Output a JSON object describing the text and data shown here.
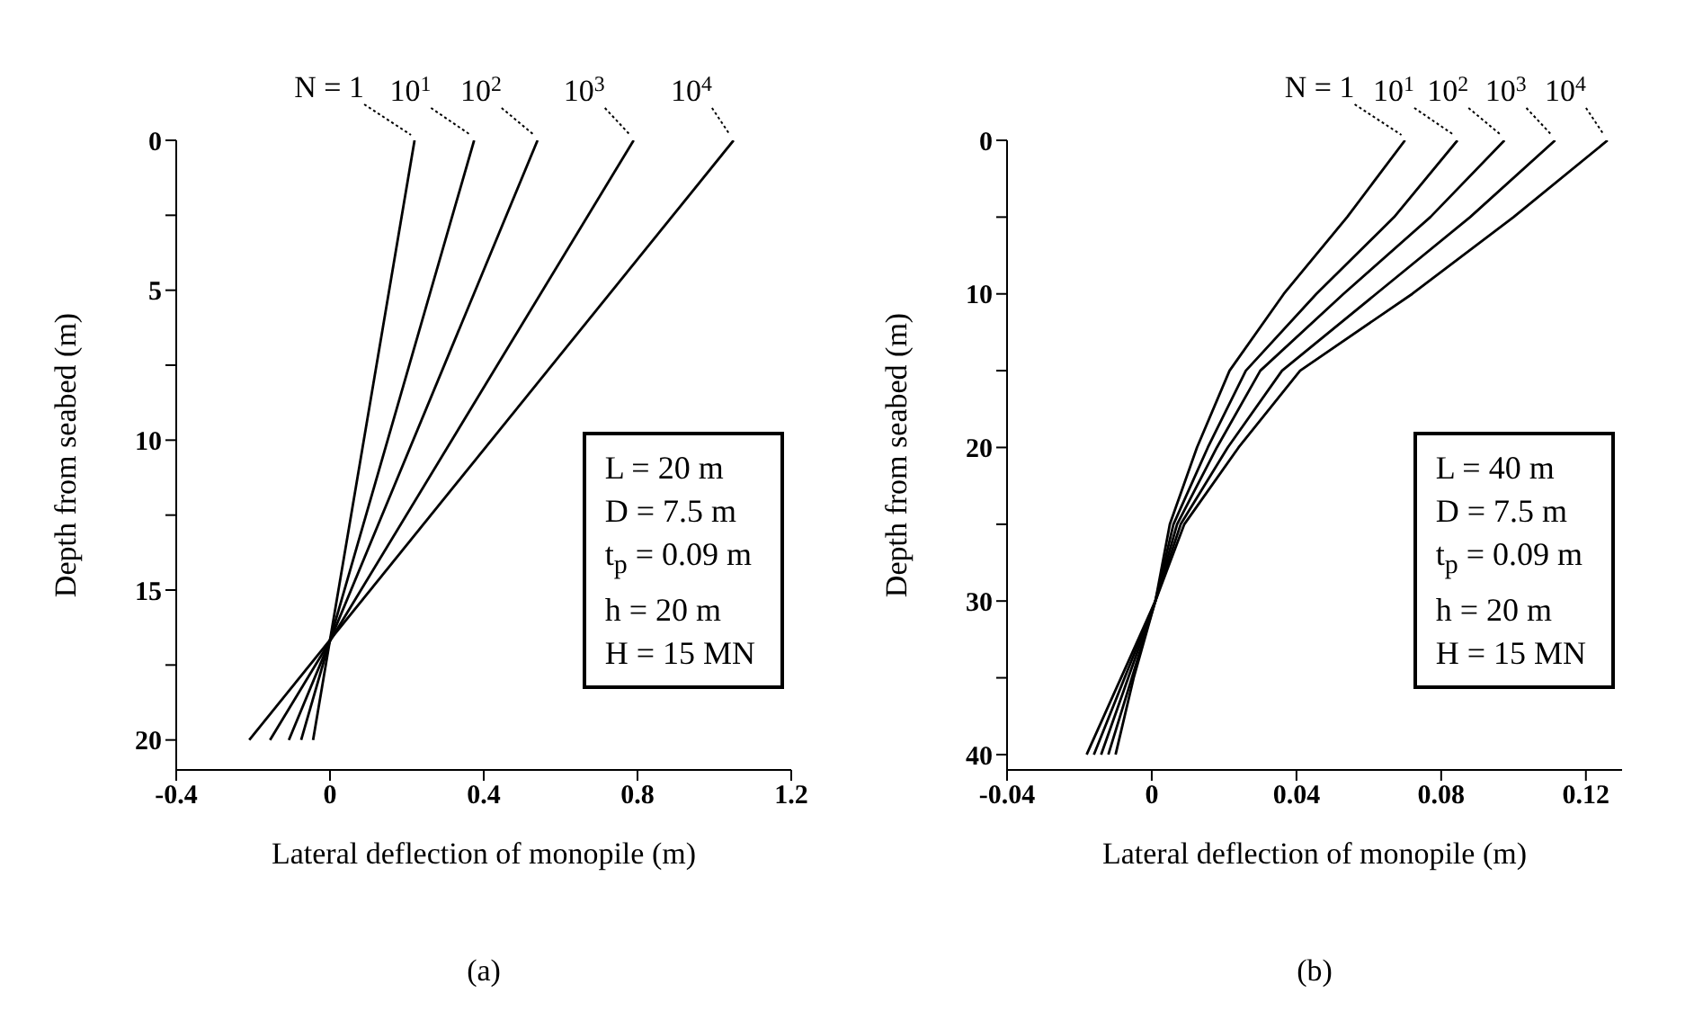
{
  "chart_data": [
    {
      "type": "line",
      "title": "(a)",
      "xlabel": "Lateral deflection of monopile (m)",
      "ylabel": "Depth from seabed (m)",
      "xlim": [
        -0.4,
        1.2
      ],
      "xticks": [
        -0.4,
        0,
        0.4,
        0.8,
        1.2
      ],
      "ylim": [
        21,
        0
      ],
      "yticks": [
        0,
        {
          "value": 2.5,
          "label": null
        },
        5,
        {
          "value": 7.5,
          "label": null
        },
        10,
        {
          "value": 12.5,
          "label": null
        },
        15,
        {
          "value": 17.5,
          "label": null
        },
        20
      ],
      "legend": false,
      "grid": false,
      "annotations": [
        "L = 20 m",
        "D = 7.5 m",
        "t$_{p}$ = 0.09 m",
        "h = 20 m",
        "H = 15 MN"
      ],
      "series": [
        {
          "name": "N = 1",
          "color": "#000000",
          "x": [
            0.22,
            -0.044
          ],
          "values": [
            0,
            20
          ]
        },
        {
          "name": "10$^{1}$",
          "color": "#000000",
          "x": [
            0.375,
            -0.075
          ],
          "values": [
            0,
            20
          ]
        },
        {
          "name": "10$^{2}$",
          "color": "#000000",
          "x": [
            0.54,
            -0.107
          ],
          "values": [
            0,
            20
          ]
        },
        {
          "name": "10$^{3}$",
          "color": "#000000",
          "x": [
            0.79,
            -0.156
          ],
          "values": [
            0,
            20
          ]
        },
        {
          "name": "10$^{4}$",
          "color": "#000000",
          "x": [
            1.05,
            -0.21
          ],
          "values": [
            0,
            20
          ]
        }
      ]
    },
    {
      "type": "line",
      "title": "(b)",
      "xlabel": "Lateral deflection of monopile (m)",
      "ylabel": "Depth from seabed (m)",
      "xlim": [
        -0.04,
        0.13
      ],
      "xticks": [
        -0.04,
        0,
        0.04,
        0.08,
        0.12
      ],
      "ylim": [
        41,
        0
      ],
      "yticks": [
        0,
        {
          "value": 5,
          "label": null
        },
        10,
        {
          "value": 15,
          "label": null
        },
        20,
        {
          "value": 25,
          "label": null
        },
        30,
        {
          "value": 35,
          "label": null
        },
        40
      ],
      "legend": false,
      "grid": false,
      "annotations": [
        "L = 40 m",
        "D = 7.5 m",
        "t$_{p}$ = 0.09 m",
        "h = 20 m",
        "H = 15 MN"
      ],
      "series": [
        {
          "name": "N = 1",
          "color": "#000000",
          "x": [
            0.07,
            0.054,
            0.0365,
            0.0215,
            0.0125,
            0.005,
            0.001,
            -0.005,
            -0.01
          ],
          "values": [
            0,
            5,
            10,
            15,
            20,
            25,
            30,
            35,
            40
          ]
        },
        {
          "name": "10$^{1}$",
          "color": "#000000",
          "x": [
            0.0845,
            0.067,
            0.0455,
            0.026,
            0.0155,
            0.006,
            0.001,
            -0.0055,
            -0.012
          ],
          "values": [
            0,
            5,
            10,
            15,
            20,
            25,
            30,
            35,
            40
          ]
        },
        {
          "name": "10$^{2}$",
          "color": "#000000",
          "x": [
            0.0975,
            0.077,
            0.053,
            0.03,
            0.018,
            0.007,
            0.001,
            -0.0065,
            -0.014
          ],
          "values": [
            0,
            5,
            10,
            15,
            20,
            25,
            30,
            35,
            40
          ]
        },
        {
          "name": "10$^{3}$",
          "color": "#000000",
          "x": [
            0.1115,
            0.088,
            0.062,
            0.036,
            0.021,
            0.008,
            0.001,
            -0.0075,
            -0.016
          ],
          "values": [
            0,
            5,
            10,
            15,
            20,
            25,
            30,
            35,
            40
          ]
        },
        {
          "name": "10$^{4}$",
          "color": "#000000",
          "x": [
            0.126,
            0.1,
            0.072,
            0.041,
            0.024,
            0.009,
            0.001,
            -0.0085,
            -0.018
          ],
          "values": [
            0,
            5,
            10,
            15,
            20,
            25,
            30,
            35,
            40
          ]
        }
      ]
    }
  ]
}
